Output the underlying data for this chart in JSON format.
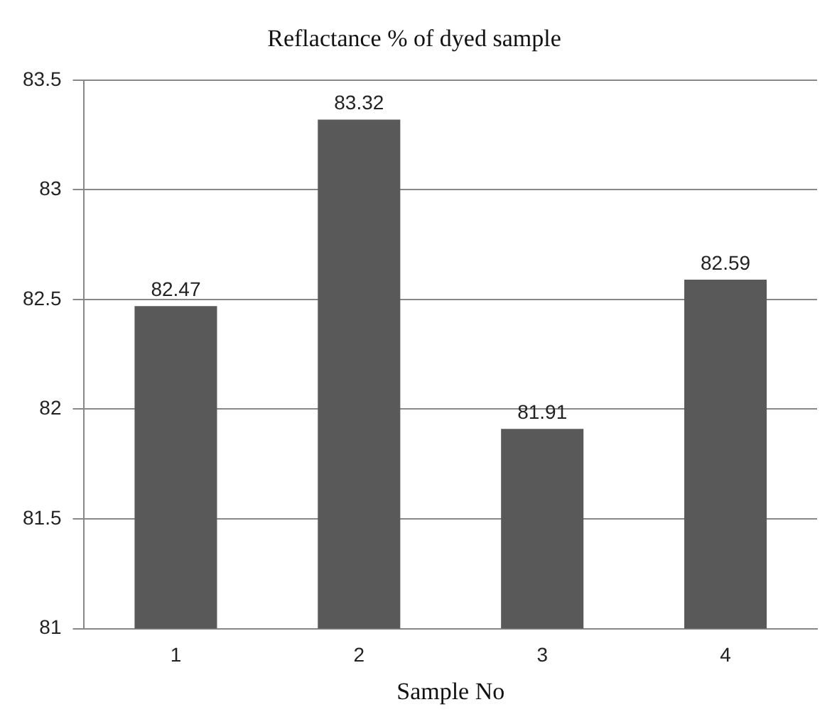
{
  "chart_data": {
    "type": "bar",
    "title": "Reflactance % of dyed sample",
    "xlabel": "Sample No",
    "categories": [
      "1",
      "2",
      "3",
      "4"
    ],
    "values": [
      82.47,
      83.32,
      81.91,
      82.59
    ],
    "color": "#595959",
    "ylim": [
      81,
      83.5
    ],
    "yticks": [
      81,
      81.5,
      82,
      82.5,
      83,
      83.5
    ],
    "grid": "y",
    "data_labels": true,
    "legend": false
  }
}
